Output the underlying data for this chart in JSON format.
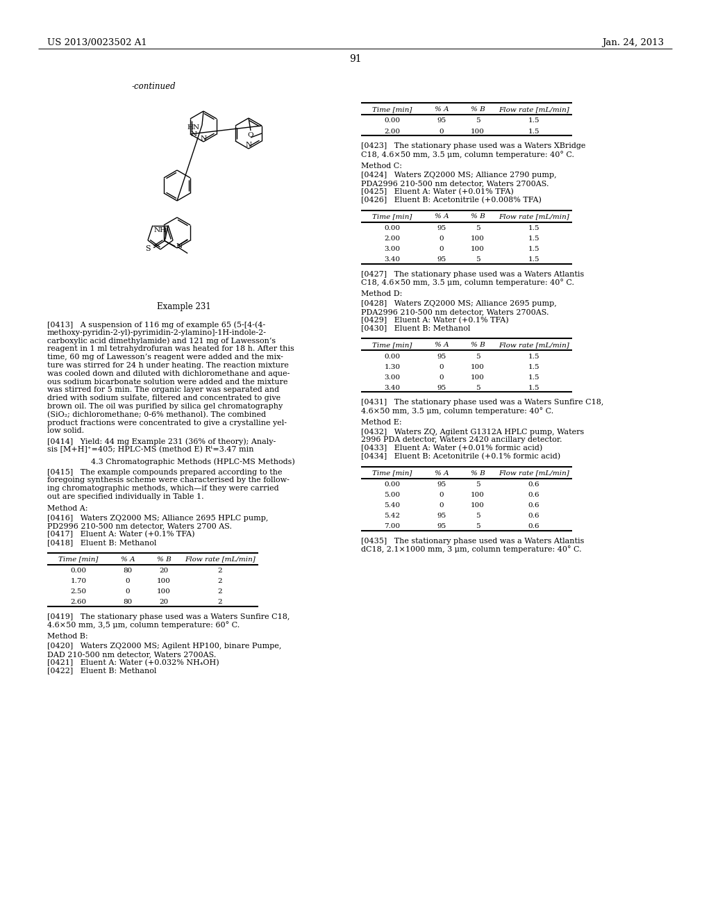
{
  "page_header_left": "US 2013/0023502 A1",
  "page_header_right": "Jan. 24, 2013",
  "page_number": "91",
  "continued_label": "-continued",
  "example_label": "Example 231",
  "bg_color": "#ffffff",
  "table_B": {
    "headers": [
      "Time [min]",
      "% A",
      "% B",
      "Flow rate [mL/min]"
    ],
    "rows": [
      [
        "0.00",
        "95",
        "5",
        "1.5"
      ],
      [
        "2.00",
        "0",
        "100",
        "1.5"
      ]
    ]
  },
  "table_C": {
    "headers": [
      "Time [min]",
      "% A",
      "% B",
      "Flow rate [mL/min]"
    ],
    "rows": [
      [
        "0.00",
        "95",
        "5",
        "1.5"
      ],
      [
        "2.00",
        "0",
        "100",
        "1.5"
      ],
      [
        "3.00",
        "0",
        "100",
        "1.5"
      ],
      [
        "3.40",
        "95",
        "5",
        "1.5"
      ]
    ]
  },
  "table_A": {
    "headers": [
      "Time [min]",
      "% A",
      "% B",
      "Flow rate [mL/min]"
    ],
    "rows": [
      [
        "0.00",
        "80",
        "20",
        "2"
      ],
      [
        "1.70",
        "0",
        "100",
        "2"
      ],
      [
        "2.50",
        "0",
        "100",
        "2"
      ],
      [
        "2.60",
        "80",
        "20",
        "2"
      ]
    ]
  },
  "table_D": {
    "headers": [
      "Time [min]",
      "% A",
      "% B",
      "Flow rate [mL/min]"
    ],
    "rows": [
      [
        "0.00",
        "95",
        "5",
        "1.5"
      ],
      [
        "1.30",
        "0",
        "100",
        "1.5"
      ],
      [
        "3.00",
        "0",
        "100",
        "1.5"
      ],
      [
        "3.40",
        "95",
        "5",
        "1.5"
      ]
    ]
  },
  "table_E": {
    "headers": [
      "Time [min]",
      "% A",
      "% B",
      "Flow rate [mL/min]"
    ],
    "rows": [
      [
        "0.00",
        "95",
        "5",
        "0.6"
      ],
      [
        "5.00",
        "0",
        "100",
        "0.6"
      ],
      [
        "5.40",
        "0",
        "100",
        "0.6"
      ],
      [
        "5.42",
        "95",
        "5",
        "0.6"
      ],
      [
        "7.00",
        "95",
        "5",
        "0.6"
      ]
    ]
  }
}
